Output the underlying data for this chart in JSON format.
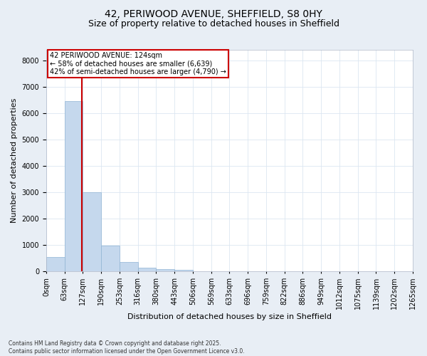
{
  "title_line1": "42, PERIWOOD AVENUE, SHEFFIELD, S8 0HY",
  "title_line2": "Size of property relative to detached houses in Sheffield",
  "xlabel": "Distribution of detached houses by size in Sheffield",
  "ylabel": "Number of detached properties",
  "bar_values": [
    560,
    6450,
    3000,
    970,
    350,
    150,
    80,
    50,
    0,
    0,
    0,
    0,
    0,
    0,
    0,
    0,
    0,
    0,
    0,
    0
  ],
  "bin_labels": [
    "0sqm",
    "63sqm",
    "127sqm",
    "190sqm",
    "253sqm",
    "316sqm",
    "380sqm",
    "443sqm",
    "506sqm",
    "569sqm",
    "633sqm",
    "696sqm",
    "759sqm",
    "822sqm",
    "886sqm",
    "949sqm",
    "1012sqm",
    "1075sqm",
    "1139sqm",
    "1202sqm",
    "1265sqm"
  ],
  "bar_color": "#c5d8ed",
  "bar_edge_color": "#90b4d4",
  "grid_color": "#dce6f1",
  "vline_color": "#cc0000",
  "annotation_box_color": "#cc0000",
  "annotation_title": "42 PERIWOOD AVENUE: 124sqm",
  "annotation_line1": "← 58% of detached houses are smaller (6,639)",
  "annotation_line2": "42% of semi-detached houses are larger (4,790) →",
  "ylim": [
    0,
    8400
  ],
  "yticks": [
    0,
    1000,
    2000,
    3000,
    4000,
    5000,
    6000,
    7000,
    8000
  ],
  "footer_line1": "Contains HM Land Registry data © Crown copyright and database right 2025.",
  "footer_line2": "Contains public sector information licensed under the Open Government Licence v3.0.",
  "bg_color": "#e8eef5",
  "plot_bg_color": "#ffffff",
  "title_fontsize": 10,
  "subtitle_fontsize": 9,
  "ylabel_fontsize": 8,
  "xlabel_fontsize": 8,
  "tick_fontsize": 7,
  "footer_fontsize": 5.5
}
